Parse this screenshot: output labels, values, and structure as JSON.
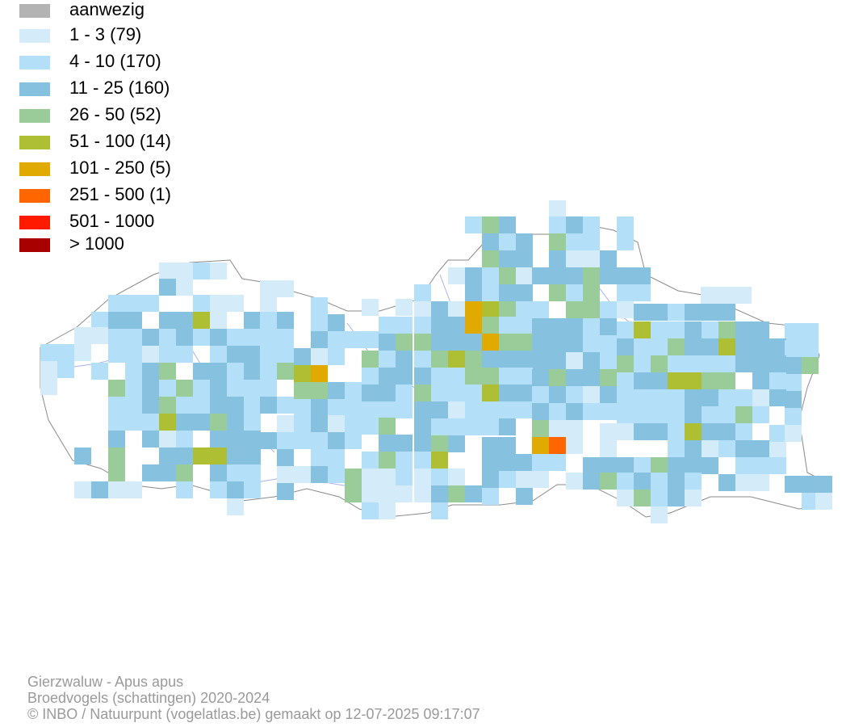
{
  "legend": {
    "items": [
      {
        "label": "aanwezig",
        "color": "#b3b3b3"
      },
      {
        "label": "1 - 3 (79)",
        "color": "#d4ebf9"
      },
      {
        "label": "4 - 10 (170)",
        "color": "#b3e0f8"
      },
      {
        "label": "11 - 25 (160)",
        "color": "#87c1e0"
      },
      {
        "label": "26 - 50 (52)",
        "color": "#99cc99"
      },
      {
        "label": "51 - 100 (14)",
        "color": "#aebf34"
      },
      {
        "label": "101 - 250 (5)",
        "color": "#e0aa00"
      },
      {
        "label": "251 - 500 (1)",
        "color": "#ff6600"
      },
      {
        "label": "501 - 1000",
        "color": "#ff1a00"
      },
      {
        "label": "> 1000",
        "color": "#a80000"
      }
    ]
  },
  "credits": {
    "species": "Gierzwaluw - Apus apus",
    "dataset": "Broedvogels (schattingen) 2020-2024",
    "copyright": "© INBO / Natuurpunt (vogelatlas.be) gemaakt op 12-07-2025 09:17:07"
  }
}
